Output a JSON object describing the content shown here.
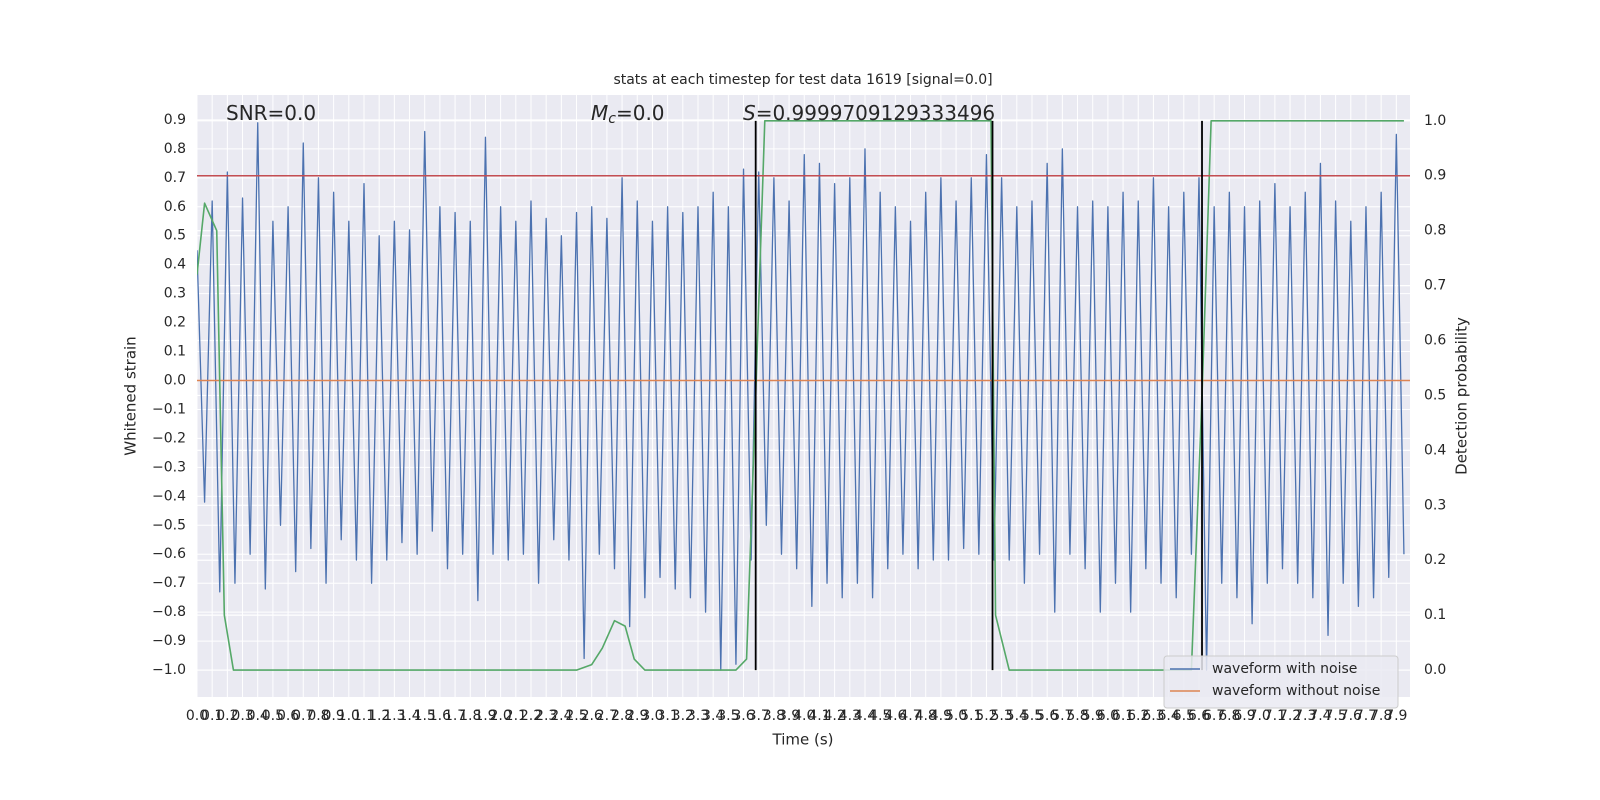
{
  "chart_data": {
    "type": "line",
    "title": "stats at each timestep for test data 1619 [signal=0.0]",
    "x_label": "Time (s)",
    "y_label": "Whitened strain",
    "y2_label": "Detection probability",
    "annotations": [
      {
        "text": "SNR=0.0"
      },
      {
        "symbol": "M",
        "subscript": "c",
        "text": "=0.0"
      },
      {
        "symbol": "S",
        "text": "=0.9999709129333496"
      }
    ],
    "xlim": [
      0,
      7.99
    ],
    "ylim": [
      -1.093,
      0.986
    ],
    "y2lim": [
      -0.049,
      1.047
    ],
    "grid": true,
    "legend": "lower right",
    "xticks": [
      {
        "value": 0,
        "label": "0.0"
      },
      0.1,
      0.2,
      0.3,
      0.4,
      0.5,
      0.6,
      0.7,
      0.8,
      0.9,
      {
        "value": 1,
        "label": "1.0"
      },
      1.1,
      1.2,
      1.3,
      1.4,
      1.5,
      1.6,
      1.7,
      1.8,
      1.9,
      {
        "value": 2,
        "label": "2.0"
      },
      2.1,
      2.2,
      2.3,
      2.4,
      2.5,
      2.6,
      2.7,
      2.8,
      2.9,
      {
        "value": 3,
        "label": "3.0"
      },
      3.1,
      3.2,
      3.3,
      3.4,
      3.5,
      3.6,
      3.7,
      3.8,
      3.9,
      {
        "value": 4,
        "label": "4.0"
      },
      4.1,
      4.2,
      4.3,
      4.4,
      4.5,
      4.6,
      4.7,
      4.8,
      4.9,
      {
        "value": 5,
        "label": "5.0"
      },
      5.1,
      5.2,
      5.3,
      5.4,
      5.5,
      5.6,
      5.7,
      5.8,
      5.9,
      {
        "value": 6,
        "label": "6.0"
      },
      6.1,
      6.2,
      6.3,
      6.4,
      6.5,
      6.6,
      6.7,
      6.8,
      6.9,
      {
        "value": 7,
        "label": "7.0"
      },
      7.1,
      7.2,
      7.3,
      7.4,
      7.5,
      7.6,
      7.7,
      7.8,
      7.9
    ],
    "yticks": [
      {
        "value": -1.0,
        "label": "−1.0"
      },
      {
        "value": -0.9,
        "label": "−0.9"
      },
      {
        "value": -0.8,
        "label": "−0.8"
      },
      {
        "value": -0.7,
        "label": "−0.7"
      },
      {
        "value": -0.6,
        "label": "−0.6"
      },
      {
        "value": -0.5,
        "label": "−0.5"
      },
      {
        "value": -0.4,
        "label": "−0.4"
      },
      {
        "value": -0.3,
        "label": "−0.3"
      },
      {
        "value": -0.2,
        "label": "−0.2"
      },
      {
        "value": -0.1,
        "label": "−0.1"
      },
      {
        "value": 0,
        "label": "0.0"
      },
      0.1,
      0.2,
      0.3,
      0.4,
      0.5,
      0.6,
      0.7,
      0.8,
      0.9
    ],
    "y2ticks": [
      {
        "value": 0,
        "label": "0.0"
      },
      0.1,
      0.2,
      0.3,
      0.4,
      0.5,
      0.6,
      0.7,
      0.8,
      0.9,
      {
        "value": 1,
        "label": "1.0"
      }
    ],
    "series": [
      {
        "name": "waveform with noise",
        "color": "#4c72b0",
        "x": [
          0,
          0.05,
          0.1,
          0.15,
          0.2,
          0.25,
          0.3,
          0.35,
          0.4,
          0.45,
          0.5,
          0.55,
          0.6,
          0.65,
          0.7,
          0.75,
          0.8,
          0.85,
          0.9,
          0.95,
          1.0,
          1.05,
          1.1,
          1.15,
          1.2,
          1.25,
          1.3,
          1.35,
          1.4,
          1.45,
          1.5,
          1.55,
          1.6,
          1.65,
          1.7,
          1.75,
          1.8,
          1.85,
          1.9,
          1.95,
          2.0,
          2.05,
          2.1,
          2.15,
          2.2,
          2.25,
          2.3,
          2.35,
          2.4,
          2.45,
          2.5,
          2.55,
          2.6,
          2.65,
          2.7,
          2.75,
          2.8,
          2.85,
          2.9,
          2.95,
          3.0,
          3.05,
          3.1,
          3.15,
          3.2,
          3.25,
          3.3,
          3.35,
          3.4,
          3.45,
          3.5,
          3.55,
          3.6,
          3.65,
          3.7,
          3.75,
          3.8,
          3.85,
          3.9,
          3.95,
          4.0,
          4.05,
          4.1,
          4.15,
          4.2,
          4.25,
          4.3,
          4.35,
          4.4,
          4.45,
          4.5,
          4.55,
          4.6,
          4.65,
          4.7,
          4.75,
          4.8,
          4.85,
          4.9,
          4.95,
          5.0,
          5.05,
          5.1,
          5.15,
          5.2,
          5.25,
          5.3,
          5.35,
          5.4,
          5.45,
          5.5,
          5.55,
          5.6,
          5.65,
          5.7,
          5.75,
          5.8,
          5.85,
          5.9,
          5.95,
          6.0,
          6.05,
          6.1,
          6.15,
          6.2,
          6.25,
          6.3,
          6.35,
          6.4,
          6.45,
          6.5,
          6.55,
          6.6,
          6.65,
          6.7,
          6.75,
          6.8,
          6.85,
          6.9,
          6.95,
          7.0,
          7.05,
          7.1,
          7.15,
          7.2,
          7.25,
          7.3,
          7.35,
          7.4,
          7.45,
          7.5,
          7.55,
          7.6,
          7.65,
          7.7,
          7.75,
          7.8,
          7.85,
          7.9,
          7.95
        ],
        "values": [
          0.45,
          -0.42,
          0.62,
          -0.73,
          0.72,
          -0.7,
          0.63,
          -0.6,
          0.89,
          -0.72,
          0.55,
          -0.5,
          0.6,
          -0.66,
          0.82,
          -0.58,
          0.7,
          -0.7,
          0.65,
          -0.55,
          0.55,
          -0.62,
          0.68,
          -0.7,
          0.5,
          -0.62,
          0.55,
          -0.56,
          0.52,
          -0.6,
          0.86,
          -0.52,
          0.6,
          -0.65,
          0.58,
          -0.6,
          0.55,
          -0.76,
          0.84,
          -0.6,
          0.6,
          -0.62,
          0.55,
          -0.6,
          0.62,
          -0.7,
          0.56,
          -0.55,
          0.5,
          -0.62,
          0.58,
          -0.96,
          0.6,
          -0.6,
          0.56,
          -0.65,
          0.7,
          -0.85,
          0.62,
          -0.75,
          0.55,
          -0.68,
          0.6,
          -0.72,
          0.58,
          -0.75,
          0.6,
          -0.8,
          0.65,
          -1.0,
          0.6,
          -0.98,
          0.73,
          -0.62,
          0.72,
          -0.5,
          0.7,
          -0.6,
          0.62,
          -0.65,
          0.78,
          -0.78,
          0.75,
          -0.7,
          0.68,
          -0.75,
          0.7,
          -0.7,
          0.8,
          -0.75,
          0.65,
          -0.65,
          0.6,
          -0.6,
          0.55,
          -0.65,
          0.65,
          -0.62,
          0.7,
          -0.62,
          0.62,
          -0.58,
          0.7,
          -0.6,
          0.78,
          -0.62,
          0.7,
          -0.62,
          0.6,
          -0.7,
          0.62,
          -0.6,
          0.75,
          -0.8,
          0.8,
          -0.6,
          0.6,
          -0.65,
          0.62,
          -0.8,
          0.6,
          -0.7,
          0.65,
          -0.8,
          0.62,
          -0.65,
          0.7,
          -0.7,
          0.6,
          -0.75,
          0.65,
          -0.6,
          0.7,
          -1.0,
          0.6,
          -0.7,
          0.65,
          -0.75,
          0.6,
          -0.84,
          0.62,
          -0.7,
          0.68,
          -0.65,
          0.6,
          -0.7,
          0.65,
          -0.75,
          0.75,
          -0.88,
          0.62,
          -0.7,
          0.55,
          -0.78,
          0.6,
          -0.75,
          0.65,
          -0.68,
          0.85,
          -0.6
        ]
      },
      {
        "name": "waveform without noise",
        "color": "#dd8452",
        "x": [
          0,
          7.99
        ],
        "values": [
          0,
          0
        ]
      },
      {
        "color": "#55a868",
        "axis": "y2",
        "x": [
          0,
          0.05,
          0.13,
          0.18,
          0.24,
          2.5,
          2.6,
          2.67,
          2.75,
          2.82,
          2.88,
          2.95,
          3.55,
          3.62,
          3.68,
          3.74,
          5.23,
          5.26,
          5.35,
          6.55,
          6.62,
          6.68,
          7.95
        ],
        "values": [
          0.72,
          0.85,
          0.8,
          0.1,
          0.0,
          0.0,
          0.01,
          0.04,
          0.09,
          0.08,
          0.02,
          0.0,
          0.0,
          0.02,
          0.5,
          1.0,
          1.0,
          0.1,
          0.0,
          0.0,
          0.5,
          1.0,
          1.0
        ]
      }
    ],
    "hlines": [
      {
        "y": 0.9,
        "axis": "y2",
        "color": "#c44e52"
      }
    ],
    "vlines": {
      "x": [
        3.68,
        5.24,
        6.62
      ],
      "ymin": 0,
      "ymax": 1,
      "axis": "y2",
      "color": "#000000"
    }
  }
}
